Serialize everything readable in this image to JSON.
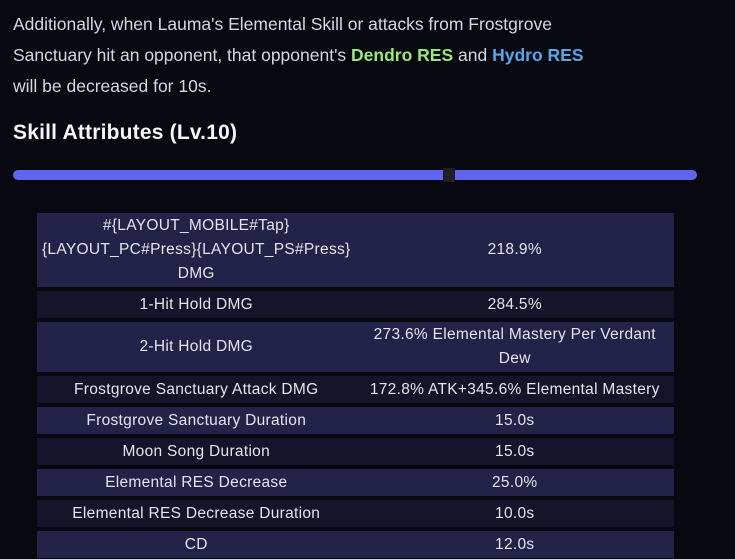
{
  "colors": {
    "dendro_res": "#98e877",
    "hydro_res": "#54a9ea",
    "slider_track": "#6164ee",
    "slider_handle": "#1f2024",
    "row_odd_bg": "#23234a",
    "row_even_bg": "#14142b"
  },
  "description": {
    "line1": "Additionally, when Lauma's Elemental Skill or attacks from Frostgrove",
    "line2_pre": "Sanctuary hit an opponent, that opponent's ",
    "dendro_res": "Dendro RES",
    "line2_and": " and ",
    "hydro_res": "Hydro RES",
    "line3": "will be decreased for 10s."
  },
  "heading": "Skill Attributes (Lv.10)",
  "level_slider": {
    "position_pct": 63.7
  },
  "table": {
    "rows": [
      {
        "label": "#{LAYOUT_MOBILE#Tap}\n{LAYOUT_PC#Press}{LAYOUT_PS#Press}\nDMG",
        "value": "218.9%"
      },
      {
        "label": "1-Hit Hold DMG",
        "value": "284.5%"
      },
      {
        "label": "2-Hit Hold DMG",
        "value": "273.6% Elemental Mastery Per Verdant\nDew"
      },
      {
        "label": "Frostgrove Sanctuary Attack DMG",
        "value": "172.8% ATK+345.6% Elemental Mastery"
      },
      {
        "label": "Frostgrove Sanctuary Duration",
        "value": "15.0s"
      },
      {
        "label": "Moon Song Duration",
        "value": "15.0s"
      },
      {
        "label": "Elemental RES Decrease",
        "value": "25.0%"
      },
      {
        "label": "Elemental RES Decrease Duration",
        "value": "10.0s"
      },
      {
        "label": "CD",
        "value": "12.0s"
      }
    ]
  }
}
